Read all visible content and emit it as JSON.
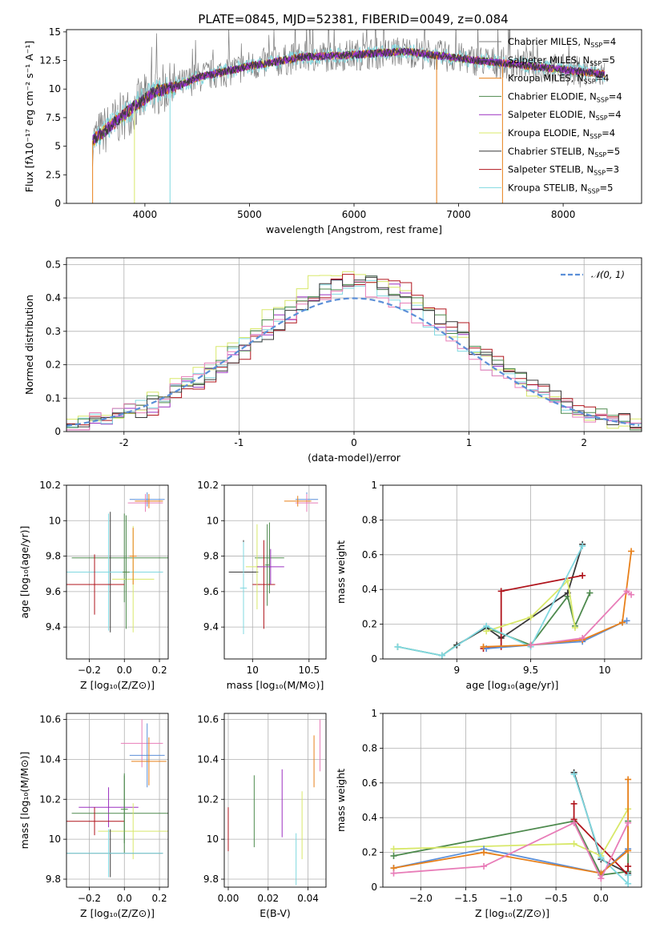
{
  "figure": {
    "title": "PLATE=0845, MJD=52381, FIBERID=0049, z=0.084"
  },
  "chart_data": [
    {
      "id": "spectrum",
      "type": "line",
      "xlabel": "wavelength [Angstrom, rest frame]",
      "ylabel": "Flux [fλ10⁻¹⁷ erg cm⁻² s⁻¹ A⁻¹]",
      "xlim": [
        3250,
        8750
      ],
      "ylim": [
        0,
        15.2
      ],
      "xticks": [
        4000,
        5000,
        6000,
        7000,
        8000
      ],
      "yticks": [
        0.0,
        2.5,
        5.0,
        7.5,
        10.0,
        12.5,
        15.0
      ],
      "grid": false,
      "legend_position": "right",
      "continuum_knots": {
        "x": [
          3500,
          3700,
          3900,
          4100,
          4300,
          4500,
          4800,
          5000,
          5200,
          5500,
          6000,
          6500,
          7000,
          7500,
          8000,
          8400
        ],
        "y": [
          5.5,
          7.0,
          8.5,
          9.8,
          10.2,
          11.0,
          11.6,
          12.0,
          12.3,
          12.8,
          13.0,
          13.3,
          12.7,
          12.2,
          11.7,
          11.3
        ]
      },
      "data_range": [
        3500,
        8400
      ],
      "series": [
        {
          "name": "Chabrier MILES, N_SSP=4",
          "label_main": "Chabrier MILES, N",
          "label_sub": "SSP",
          "label_val": "=4",
          "color": "#7f7f7f"
        },
        {
          "name": "Salpeter MILES, N_SSP=5",
          "label_main": "Salpeter MILES, N",
          "label_sub": "SSP",
          "label_val": "=5",
          "color": "#8a2be2"
        },
        {
          "name": "Kroupa MILES, N_SSP=4",
          "label_main": "Kroupa MILES, N",
          "label_sub": "SSP",
          "label_val": "=4",
          "color": "#e8801a"
        },
        {
          "name": "Chabrier ELODIE, N_SSP=4",
          "label_main": "Chabrier ELODIE, N",
          "label_sub": "SSP",
          "label_val": "=4",
          "color": "#4e8a4e"
        },
        {
          "name": "Salpeter ELODIE, N_SSP=4",
          "label_main": "Salpeter ELODIE, N",
          "label_sub": "SSP",
          "label_val": "=4",
          "color": "#9b30c0"
        },
        {
          "name": "Kroupa ELODIE, N_SSP=4",
          "label_main": "Kroupa ELODIE, N",
          "label_sub": "SSP",
          "label_val": "=4",
          "color": "#d8e86a"
        },
        {
          "name": "Chabrier STELIB, N_SSP=5",
          "label_main": "Chabrier STELIB, N",
          "label_sub": "SSP",
          "label_val": "=5",
          "color": "#3a3a3a"
        },
        {
          "name": "Salpeter STELIB, N_SSP=3",
          "label_main": "Salpeter STELIB, N",
          "label_sub": "SSP",
          "label_val": "=3",
          "color": "#b0141c"
        },
        {
          "name": "Kroupa STELIB, N_SSP=5",
          "label_main": "Kroupa STELIB, N",
          "label_sub": "SSP",
          "label_val": "=5",
          "color": "#80d8e0"
        }
      ]
    },
    {
      "id": "residuals",
      "type": "line",
      "xlabel": "(data-model)/error",
      "ylabel": "Normed distribution",
      "xlim": [
        -2.5,
        2.5
      ],
      "ylim": [
        0,
        0.52
      ],
      "xticks": [
        -2,
        -1,
        0,
        1,
        2
      ],
      "yticks": [
        0.0,
        0.1,
        0.2,
        0.3,
        0.4,
        0.5
      ],
      "grid": true,
      "legend_position": "top-right",
      "bin_width": 0.1,
      "gaussian": {
        "name": "N(0,1)",
        "label_main": "𝒩(0, 1)",
        "mean": 0,
        "sigma": 1,
        "color": "#5b8fd8"
      },
      "histograms": [
        {
          "color": "#9b30c0",
          "scale": 1.02,
          "skew": 0.05
        },
        {
          "color": "#d8e86a",
          "scale": 1.08,
          "skew": -0.05
        },
        {
          "color": "#b0141c",
          "scale": 1.05,
          "skew": 0.12
        },
        {
          "color": "#80d8e0",
          "scale": 1.0,
          "skew": 0.0
        },
        {
          "color": "#4e8a4e",
          "scale": 1.04,
          "skew": 0.03
        },
        {
          "color": "#e87db8",
          "scale": 0.98,
          "skew": -0.02
        },
        {
          "color": "#3a3a3a",
          "scale": 1.03,
          "skew": 0.07
        }
      ]
    },
    {
      "id": "age_vs_Z",
      "type": "scatter",
      "xlabel": "Z [log₁₀(Z/Z⊙)]",
      "ylabel": "age  [log₁₀(age/yr)]",
      "xlim": [
        -0.33,
        0.25
      ],
      "ylim": [
        9.22,
        10.2
      ],
      "xticks": [
        -0.2,
        0.0,
        0.2
      ],
      "xticklabels": [
        "−0.2",
        "0.0",
        "0.2"
      ],
      "yticks": [
        9.4,
        9.6,
        9.8,
        10.0,
        10.2
      ],
      "grid": true,
      "errorbars": [
        {
          "x": 0.13,
          "y": 10.12,
          "xerr": 0.1,
          "yerr": 0.04,
          "color": "#5b8fd8"
        },
        {
          "x": 0.12,
          "y": 10.1,
          "xerr": 0.1,
          "yerr": 0.05,
          "color": "#e87db8"
        },
        {
          "x": 0.14,
          "y": 10.11,
          "xerr": 0.08,
          "yerr": 0.04,
          "color": "#e8801a"
        },
        {
          "x": 0.0,
          "y": 9.79,
          "xerr": 0.3,
          "yerr": 0.25,
          "color": "#4e8a4e"
        },
        {
          "x": -0.08,
          "y": 9.71,
          "xerr": 0.3,
          "yerr": 0.34,
          "color": "#3a3a3a"
        },
        {
          "x": -0.09,
          "y": 9.71,
          "xerr": 0.31,
          "yerr": 0.33,
          "color": "#80d8e0"
        },
        {
          "x": -0.17,
          "y": 9.64,
          "xerr": 0.17,
          "yerr": 0.17,
          "color": "#b0141c"
        },
        {
          "x": 0.05,
          "y": 9.67,
          "xerr": 0.12,
          "yerr": 0.3,
          "color": "#d8e86a"
        },
        {
          "x": 0.01,
          "y": 9.71,
          "xerr": 0.02,
          "yerr": 0.32,
          "color": "#4e8a4e"
        },
        {
          "x": 0.05,
          "y": 9.8,
          "xerr": 0.02,
          "yerr": 0.16,
          "color": "#e8801a"
        }
      ]
    },
    {
      "id": "age_vs_mass",
      "type": "scatter",
      "xlabel": "mass [log₁₀(M/M⊙)]",
      "xlim": [
        9.75,
        10.65
      ],
      "ylim": [
        9.22,
        10.2
      ],
      "xticks": [
        10.0,
        10.5
      ],
      "yticks": [
        9.4,
        9.6,
        9.8,
        10.0,
        10.2
      ],
      "grid": true,
      "errorbars": [
        {
          "x": 10.48,
          "y": 10.12,
          "xerr": 0.1,
          "yerr": 0.04,
          "color": "#5b8fd8"
        },
        {
          "x": 10.48,
          "y": 10.1,
          "xerr": 0.1,
          "yerr": 0.05,
          "color": "#e87db8"
        },
        {
          "x": 10.4,
          "y": 10.11,
          "xerr": 0.12,
          "yerr": 0.03,
          "color": "#e8801a"
        },
        {
          "x": 10.15,
          "y": 9.79,
          "xerr": 0.13,
          "yerr": 0.2,
          "color": "#4e8a4e"
        },
        {
          "x": 9.92,
          "y": 9.71,
          "xerr": 0.13,
          "yerr": 0.18,
          "color": "#3a3a3a"
        },
        {
          "x": 9.92,
          "y": 9.62,
          "xerr": 0.03,
          "yerr": 0.26,
          "color": "#80d8e0"
        },
        {
          "x": 10.1,
          "y": 9.64,
          "xerr": 0.1,
          "yerr": 0.25,
          "color": "#b0141c"
        },
        {
          "x": 10.04,
          "y": 9.74,
          "xerr": 0.1,
          "yerr": 0.24,
          "color": "#d8e86a"
        },
        {
          "x": 10.16,
          "y": 9.74,
          "xerr": 0.12,
          "yerr": 0.1,
          "color": "#9b30c0"
        },
        {
          "x": 10.13,
          "y": 9.75,
          "xerr": 0.02,
          "yerr": 0.23,
          "color": "#4e8a4e"
        }
      ]
    },
    {
      "id": "weight_vs_age",
      "type": "line",
      "xlabel": "age  [log₁₀(age/yr)]",
      "ylabel": "mass weight",
      "xlim": [
        8.5,
        10.25
      ],
      "ylim": [
        0,
        1.0
      ],
      "xticks": [
        9.0,
        9.5,
        10.0
      ],
      "yticks": [
        0.0,
        0.2,
        0.4,
        0.6,
        0.8,
        1.0
      ],
      "grid": true,
      "series": [
        {
          "color": "#4e8a4e",
          "x": [
            8.6,
            8.9,
            9.0,
            9.2,
            9.5,
            9.75,
            9.8,
            9.9
          ],
          "y": [
            0.07,
            0.02,
            0.08,
            0.18,
            0.08,
            0.36,
            0.19,
            0.38
          ]
        },
        {
          "color": "#3a3a3a",
          "x": [
            9.0,
            9.2,
            9.3,
            9.75,
            9.85
          ],
          "y": [
            0.08,
            0.18,
            0.12,
            0.38,
            0.66
          ]
        },
        {
          "color": "#b0141c",
          "x": [
            9.18,
            9.3,
            9.3,
            9.85
          ],
          "y": [
            0.06,
            0.07,
            0.39,
            0.48
          ]
        },
        {
          "color": "#d8e86a",
          "x": [
            9.2,
            9.5,
            9.75,
            9.8
          ],
          "y": [
            0.16,
            0.24,
            0.45,
            0.18
          ]
        },
        {
          "color": "#80d8e0",
          "x": [
            8.6,
            8.9,
            9.2,
            9.5,
            9.85
          ],
          "y": [
            0.07,
            0.02,
            0.19,
            0.07,
            0.65
          ]
        },
        {
          "color": "#5b8fd8",
          "x": [
            9.2,
            9.5,
            9.85,
            10.12,
            10.15
          ],
          "y": [
            0.06,
            0.08,
            0.1,
            0.21,
            0.22
          ]
        },
        {
          "color": "#e8801a",
          "x": [
            9.18,
            9.5,
            9.85,
            10.12,
            10.18
          ],
          "y": [
            0.07,
            0.08,
            0.11,
            0.21,
            0.62
          ]
        },
        {
          "color": "#e87db8",
          "x": [
            9.5,
            9.85,
            10.15,
            10.18
          ],
          "y": [
            0.08,
            0.12,
            0.39,
            0.37
          ]
        }
      ]
    },
    {
      "id": "mass_vs_Z",
      "type": "scatter",
      "xlabel": "Z [log₁₀(Z/Z⊙)]",
      "ylabel": "mass [log₁₀(M/M⊙)]",
      "xlim": [
        -0.33,
        0.25
      ],
      "ylim": [
        9.76,
        10.63
      ],
      "xticks": [
        -0.2,
        0.0,
        0.2
      ],
      "xticklabels": [
        "−0.2",
        "0.0",
        "0.2"
      ],
      "yticks": [
        9.8,
        10.0,
        10.2,
        10.4,
        10.6
      ],
      "grid": true,
      "errorbars": [
        {
          "x": 0.1,
          "y": 10.48,
          "xerr": 0.12,
          "yerr": 0.12,
          "color": "#e87db8"
        },
        {
          "x": 0.13,
          "y": 10.42,
          "xerr": 0.1,
          "yerr": 0.16,
          "color": "#5b8fd8"
        },
        {
          "x": 0.14,
          "y": 10.39,
          "xerr": 0.1,
          "yerr": 0.12,
          "color": "#e8801a"
        },
        {
          "x": -0.09,
          "y": 10.16,
          "xerr": 0.17,
          "yerr": 0.1,
          "color": "#9b30c0"
        },
        {
          "x": 0.0,
          "y": 10.13,
          "xerr": 0.3,
          "yerr": 0.2,
          "color": "#4e8a4e"
        },
        {
          "x": -0.17,
          "y": 10.09,
          "xerr": 0.17,
          "yerr": 0.07,
          "color": "#b0141c"
        },
        {
          "x": 0.05,
          "y": 10.04,
          "xerr": 0.2,
          "yerr": 0.14,
          "color": "#d8e86a"
        },
        {
          "x": -0.08,
          "y": 9.93,
          "xerr": 0.3,
          "yerr": 0.12,
          "color": "#3a3a3a"
        },
        {
          "x": -0.09,
          "y": 9.93,
          "xerr": 0.31,
          "yerr": 0.12,
          "color": "#80d8e0"
        },
        {
          "x": 0.0,
          "y": 10.15,
          "xerr": 0.02,
          "yerr": 0.17,
          "color": "#4e8a4e"
        }
      ]
    },
    {
      "id": "mass_vs_EBV",
      "type": "scatter",
      "xlabel": "E(B-V)",
      "xlim": [
        -0.002,
        0.049
      ],
      "ylim": [
        9.76,
        10.63
      ],
      "xticks": [
        0.0,
        0.02,
        0.04
      ],
      "xticklabels": [
        "0.00",
        "0.02",
        "0.04"
      ],
      "yticks": [
        9.8,
        10.0,
        10.2,
        10.4,
        10.6
      ],
      "grid": true,
      "errorbars": [
        {
          "x": 0.0,
          "y": 10.05,
          "xerr": 0,
          "yerr": 0.11,
          "color": "#b0141c"
        },
        {
          "x": 0.013,
          "y": 10.14,
          "xerr": 0,
          "yerr": 0.18,
          "color": "#4e8a4e"
        },
        {
          "x": 0.027,
          "y": 10.18,
          "xerr": 0,
          "yerr": 0.17,
          "color": "#9b30c0"
        },
        {
          "x": 0.034,
          "y": 9.9,
          "xerr": 0,
          "yerr": 0.13,
          "color": "#80d8e0"
        },
        {
          "x": 0.037,
          "y": 10.07,
          "xerr": 0,
          "yerr": 0.17,
          "color": "#d8e86a"
        },
        {
          "x": 0.043,
          "y": 10.39,
          "xerr": 0,
          "yerr": 0.13,
          "color": "#e8801a"
        },
        {
          "x": 0.046,
          "y": 10.47,
          "xerr": 0,
          "yerr": 0.13,
          "color": "#e87db8"
        }
      ]
    },
    {
      "id": "weight_vs_Z",
      "type": "line",
      "xlabel": "Z [log₁₀(Z/Z⊙)]",
      "ylabel": "mass weight",
      "xlim": [
        -2.42,
        0.45
      ],
      "ylim": [
        0,
        1.0
      ],
      "xticks": [
        -2.0,
        -1.5,
        -1.0,
        -0.5,
        0.0
      ],
      "xticklabels": [
        "−2.0",
        "−1.5",
        "−1.0",
        "−0.5",
        "0.0"
      ],
      "yticks": [
        0.0,
        0.2,
        0.4,
        0.6,
        0.8,
        1.0
      ],
      "grid": true,
      "series": [
        {
          "color": "#4e8a4e",
          "x": [
            -2.3,
            -0.3,
            0.0,
            0.3,
            0.3
          ],
          "y": [
            0.18,
            0.38,
            0.07,
            0.09,
            0.38
          ]
        },
        {
          "color": "#3a3a3a",
          "x": [
            -0.3,
            0.0,
            0.3
          ],
          "y": [
            0.66,
            0.16,
            0.08
          ]
        },
        {
          "color": "#b0141c",
          "x": [
            -0.3,
            -0.3,
            0.3,
            0.3
          ],
          "y": [
            0.48,
            0.39,
            0.07,
            0.12
          ]
        },
        {
          "color": "#d8e86a",
          "x": [
            -2.3,
            -0.3,
            0.0,
            0.3
          ],
          "y": [
            0.22,
            0.25,
            0.18,
            0.45
          ]
        },
        {
          "color": "#80d8e0",
          "x": [
            -0.3,
            0.0,
            0.3,
            0.3
          ],
          "y": [
            0.65,
            0.17,
            0.02,
            0.07
          ]
        },
        {
          "color": "#5b8fd8",
          "x": [
            -2.3,
            -1.3,
            0.0,
            0.3
          ],
          "y": [
            0.11,
            0.22,
            0.08,
            0.22
          ]
        },
        {
          "color": "#e8801a",
          "x": [
            -2.3,
            -1.3,
            0.0,
            0.3,
            0.3
          ],
          "y": [
            0.11,
            0.2,
            0.08,
            0.21,
            0.62
          ]
        },
        {
          "color": "#e87db8",
          "x": [
            -2.3,
            -1.3,
            -0.3,
            0.0,
            0.3
          ],
          "y": [
            0.08,
            0.12,
            0.37,
            0.05,
            0.37
          ]
        }
      ]
    }
  ]
}
